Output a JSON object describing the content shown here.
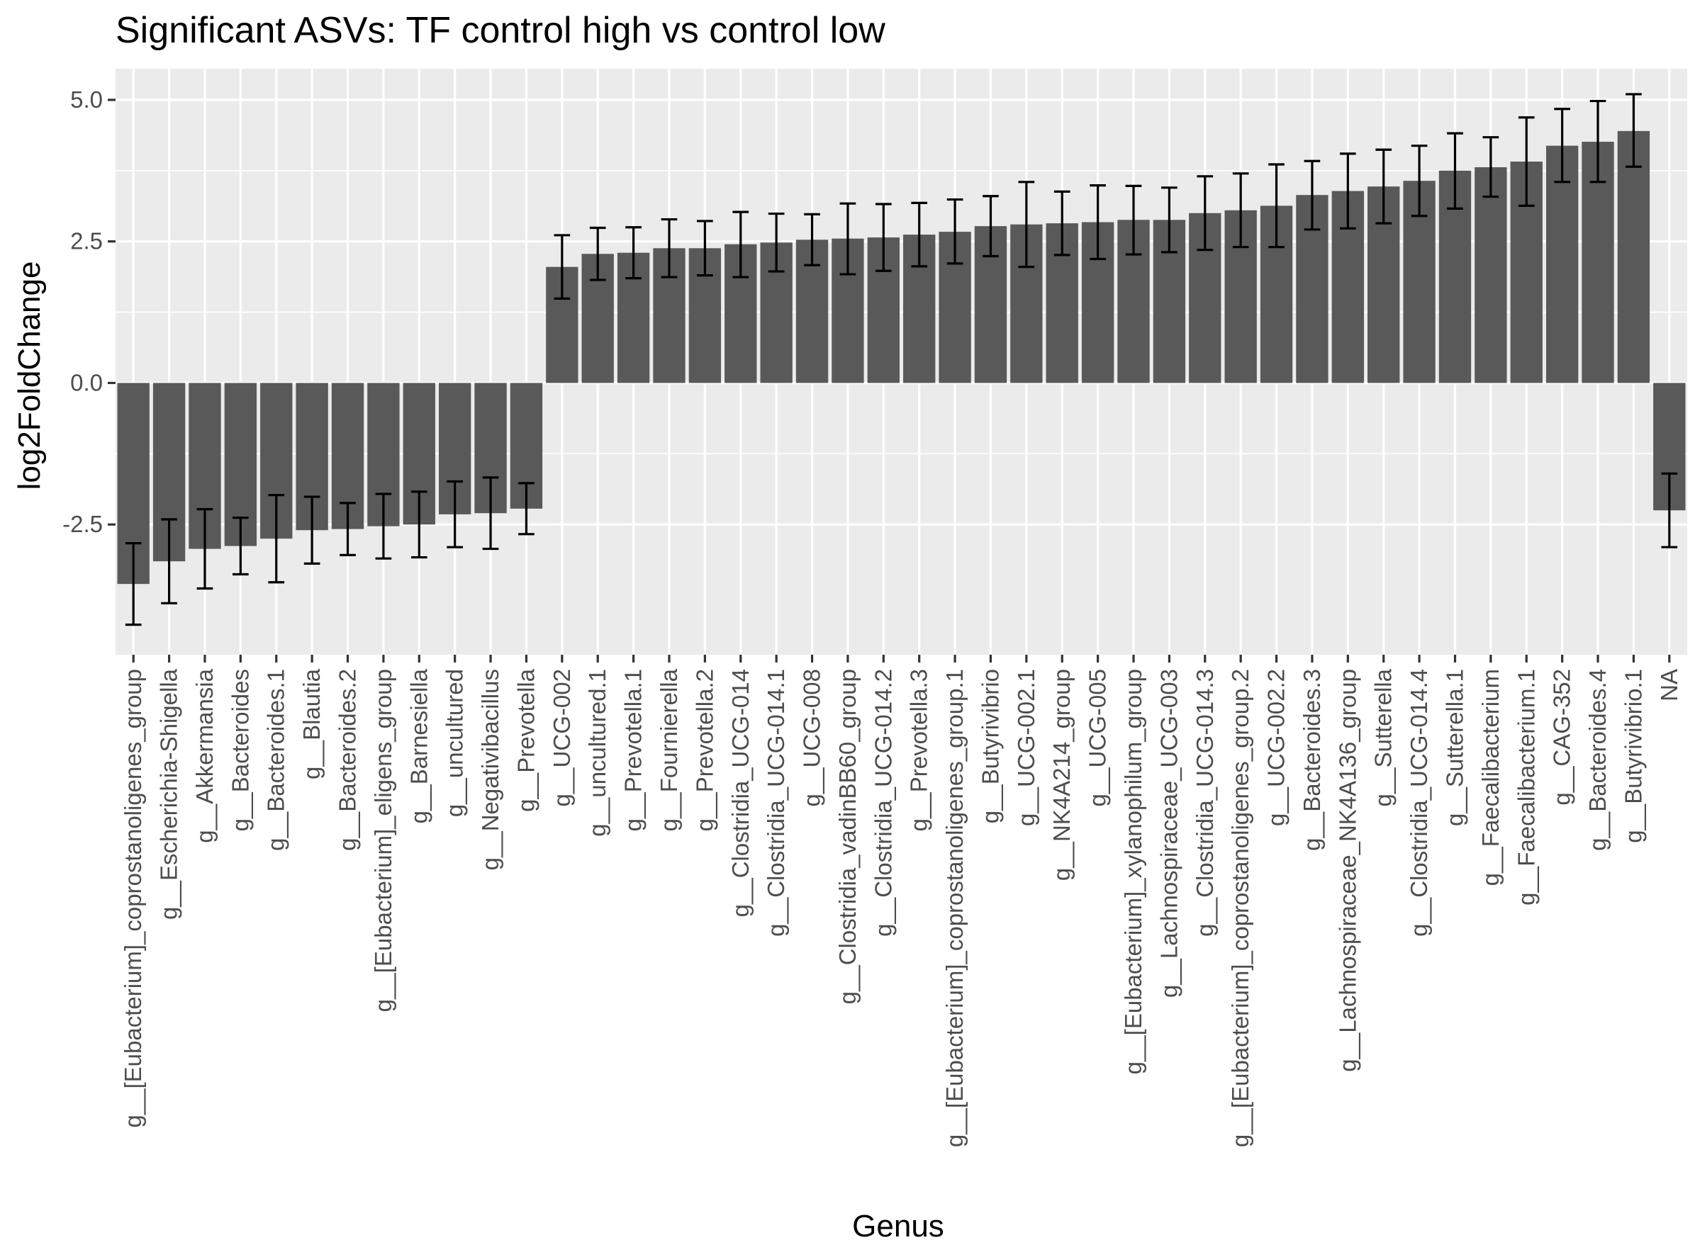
{
  "chart_data": {
    "type": "bar",
    "title": "Significant ASVs: TF control high vs control low",
    "xlabel": "Genus",
    "ylabel": "log2FoldChange",
    "ylim": [
      -4.8,
      5.55
    ],
    "y_ticks": [
      -2.5,
      0,
      2.5,
      5
    ],
    "y_tick_labels": [
      "-2.5",
      "0.0",
      "2.5",
      "5.0"
    ],
    "grid": true,
    "colors": {
      "bar": "#595959",
      "panel": "#ebebeb",
      "grid": "#ffffff",
      "error_bar": "#000000"
    },
    "categories": [
      "g__[Eubacterium]_coprostanoligenes_group",
      "g__Escherichia-Shigella",
      "g__Akkermansia",
      "g__Bacteroides",
      "g__Bacteroides.1",
      "g__Blautia",
      "g__Bacteroides.2",
      "g__[Eubacterium]_eligens_group",
      "g__Barnesiella",
      "g__uncultured",
      "g__Negativibacillus",
      "g__Prevotella",
      "g__UCG-002",
      "g__uncultured.1",
      "g__Prevotella.1",
      "g__Fournierella",
      "g__Prevotella.2",
      "g__Clostridia_UCG-014",
      "g__Clostridia_UCG-014.1",
      "g__UCG-008",
      "g__Clostridia_vadinBB60_group",
      "g__Clostridia_UCG-014.2",
      "g__Prevotella.3",
      "g__[Eubacterium]_coprostanoligenes_group.1",
      "g__Butyrivibrio",
      "g__UCG-002.1",
      "g__NK4A214_group",
      "g__UCG-005",
      "g__[Eubacterium]_xylanophilum_group",
      "g__Lachnospiraceae_UCG-003",
      "g__Clostridia_UCG-014.3",
      "g__[Eubacterium]_coprostanoligenes_group.2",
      "g__UCG-002.2",
      "g__Bacteroides.3",
      "g__Lachnospiraceae_NK4A136_group",
      "g__Sutterella",
      "g__Clostridia_UCG-014.4",
      "g__Sutterella.1",
      "g__Faecalibacterium",
      "g__Faecalibacterium.1",
      "g__CAG-352",
      "g__Bacteroides.4",
      "g__Butyrivibrio.1",
      "NA"
    ],
    "values": [
      -3.55,
      -3.15,
      -2.93,
      -2.88,
      -2.75,
      -2.6,
      -2.58,
      -2.53,
      -2.5,
      -2.32,
      -2.3,
      -2.22,
      2.05,
      2.28,
      2.3,
      2.38,
      2.38,
      2.45,
      2.48,
      2.53,
      2.55,
      2.57,
      2.62,
      2.67,
      2.77,
      2.8,
      2.82,
      2.84,
      2.88,
      2.88,
      3.0,
      3.05,
      3.13,
      3.32,
      3.39,
      3.47,
      3.57,
      3.75,
      3.81,
      3.91,
      4.19,
      4.26,
      4.45,
      -2.25
    ],
    "error_low": [
      -4.27,
      -3.89,
      -3.63,
      -3.38,
      -3.52,
      -3.19,
      -3.04,
      -3.1,
      -3.08,
      -2.9,
      -2.93,
      -2.67,
      1.49,
      1.82,
      1.85,
      1.87,
      1.9,
      1.87,
      1.97,
      2.08,
      1.92,
      1.98,
      2.06,
      2.11,
      2.24,
      2.05,
      2.26,
      2.19,
      2.27,
      2.31,
      2.35,
      2.4,
      2.4,
      2.71,
      2.73,
      2.82,
      2.95,
      3.08,
      3.29,
      3.13,
      3.55,
      3.55,
      3.82,
      -2.9
    ],
    "error_high": [
      -2.83,
      -2.41,
      -2.23,
      -2.38,
      -1.98,
      -2.01,
      -2.12,
      -1.96,
      -1.92,
      -1.74,
      -1.67,
      -1.77,
      2.61,
      2.74,
      2.75,
      2.89,
      2.86,
      3.02,
      2.99,
      2.98,
      3.17,
      3.16,
      3.18,
      3.24,
      3.3,
      3.55,
      3.38,
      3.49,
      3.48,
      3.45,
      3.65,
      3.7,
      3.86,
      3.92,
      4.05,
      4.12,
      4.19,
      4.41,
      4.34,
      4.69,
      4.84,
      4.98,
      5.1,
      -1.6
    ]
  }
}
